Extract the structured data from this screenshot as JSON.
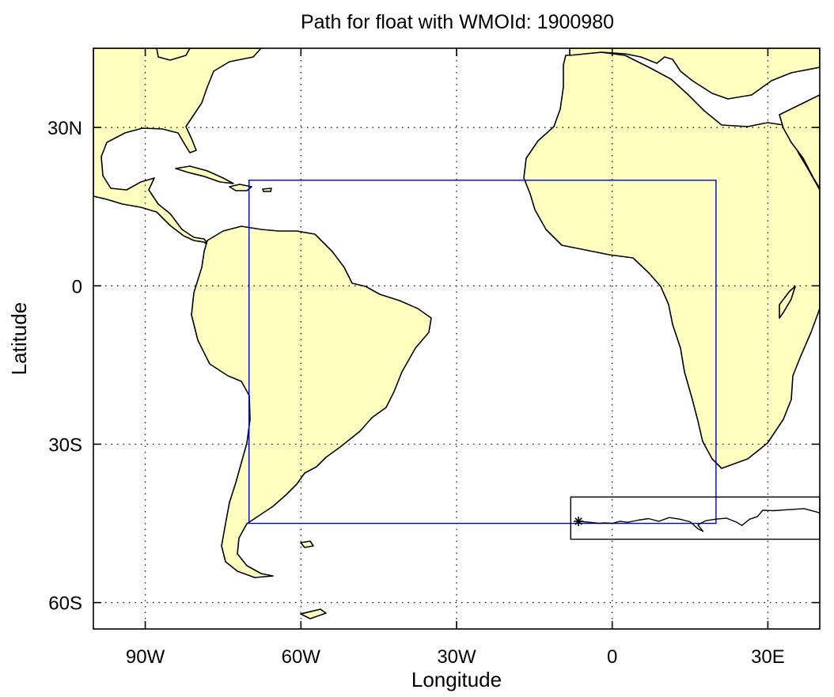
{
  "title": "Path for float with WMOId: 1900980",
  "xlabel": "Longitude",
  "ylabel": "Latitude",
  "axes": {
    "lon_range": [
      -100,
      40
    ],
    "lat_range": [
      -65,
      45
    ],
    "x_ticks": [
      {
        "value": -90,
        "label": "90W"
      },
      {
        "value": -60,
        "label": "60W"
      },
      {
        "value": -30,
        "label": "30W"
      },
      {
        "value": 0,
        "label": "0"
      },
      {
        "value": 30,
        "label": "30E"
      }
    ],
    "y_ticks": [
      {
        "value": 30,
        "label": "30N"
      },
      {
        "value": 0,
        "label": "0"
      },
      {
        "value": -30,
        "label": "30S"
      },
      {
        "value": -60,
        "label": "60S"
      }
    ],
    "grid": "dotted"
  },
  "colors": {
    "land": "#ffffc0",
    "coast": "#000000",
    "region_box": "#0000cc",
    "path_box": "#000000"
  },
  "chart_data": {
    "type": "map",
    "region_box": {
      "lon": [
        -70,
        20
      ],
      "lat": [
        -45,
        20
      ]
    },
    "path_box": {
      "lon": [
        -8,
        40
      ],
      "lat": [
        -48,
        -40
      ]
    },
    "float_start": {
      "lon": -6.5,
      "lat": -44.6,
      "marker": "asterisk"
    },
    "float_path": [
      [
        -6.5,
        -44.6
      ],
      [
        -5.5,
        -44.7
      ],
      [
        -4.3,
        -44.8
      ],
      [
        -2.5,
        -45.0
      ],
      [
        -1.5,
        -44.9
      ],
      [
        0,
        -45.0
      ],
      [
        1.5,
        -44.6
      ],
      [
        3,
        -44.8
      ],
      [
        5,
        -44.4
      ],
      [
        7,
        -44.1
      ],
      [
        9,
        -44.6
      ],
      [
        11,
        -43.9
      ],
      [
        13,
        -44.2
      ],
      [
        15,
        -44.7
      ],
      [
        16.5,
        -46.0
      ],
      [
        17.5,
        -46.5
      ],
      [
        16.5,
        -45.3
      ],
      [
        18,
        -44.5
      ],
      [
        20,
        -44.2
      ],
      [
        22,
        -44.0
      ],
      [
        24,
        -44.8
      ],
      [
        25,
        -45.4
      ],
      [
        26.5,
        -44.2
      ],
      [
        28,
        -43.7
      ],
      [
        29,
        -42.5
      ],
      [
        31,
        -42.6
      ],
      [
        34,
        -42.4
      ],
      [
        37,
        -42.2
      ],
      [
        40,
        -43.0
      ]
    ]
  }
}
